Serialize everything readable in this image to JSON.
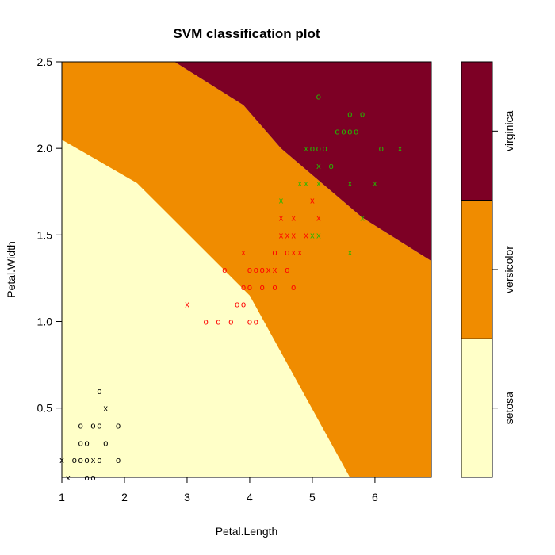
{
  "chart_data": {
    "type": "scatter",
    "title": "SVM classification plot",
    "xlabel": "Petal.Length",
    "ylabel": "Petal.Width",
    "xlim": [
      1,
      6.9
    ],
    "ylim": [
      0.1,
      2.5
    ],
    "x_ticks": [
      1,
      2,
      3,
      4,
      5,
      6
    ],
    "y_ticks": [
      0.5,
      1.0,
      1.5,
      2.0,
      2.5
    ],
    "y_tick_labels": [
      "0.5",
      "1.0",
      "1.5",
      "2.0",
      "2.5"
    ],
    "markers": {
      "data_point": "o",
      "support_vector": "x"
    },
    "classes": [
      {
        "name": "setosa",
        "region_color": "#FFFFC8",
        "point_color": "#000000"
      },
      {
        "name": "versicolor",
        "region_color": "#F08C00",
        "point_color": "#FF0000"
      },
      {
        "name": "virginica",
        "region_color": "#7D0025",
        "point_color": "#22BB00"
      }
    ],
    "decision_boundaries": [
      {
        "between": [
          "setosa",
          "versicolor"
        ],
        "points": [
          [
            1.0,
            2.05
          ],
          [
            2.2,
            1.8
          ],
          [
            4.0,
            1.15
          ],
          [
            5.6,
            0.1
          ]
        ]
      },
      {
        "between": [
          "versicolor",
          "virginica"
        ],
        "points": [
          [
            2.8,
            2.5
          ],
          [
            3.9,
            2.25
          ],
          [
            4.5,
            2.0
          ],
          [
            5.8,
            1.6
          ],
          [
            6.9,
            1.35
          ]
        ]
      }
    ],
    "legend": {
      "placement": "right",
      "labels": [
        "setosa",
        "versicolor",
        "virginica"
      ]
    },
    "series": [
      {
        "name": "setosa",
        "points": [
          [
            1.0,
            0.2,
            "x"
          ],
          [
            1.1,
            0.1,
            "x"
          ],
          [
            1.2,
            0.2,
            "o"
          ],
          [
            1.3,
            0.2,
            "o"
          ],
          [
            1.3,
            0.3,
            "o"
          ],
          [
            1.3,
            0.4,
            "o"
          ],
          [
            1.4,
            0.1,
            "o"
          ],
          [
            1.4,
            0.2,
            "o"
          ],
          [
            1.4,
            0.3,
            "o"
          ],
          [
            1.5,
            0.1,
            "o"
          ],
          [
            1.5,
            0.2,
            "x"
          ],
          [
            1.5,
            0.4,
            "o"
          ],
          [
            1.6,
            0.2,
            "o"
          ],
          [
            1.6,
            0.4,
            "o"
          ],
          [
            1.6,
            0.6,
            "o"
          ],
          [
            1.7,
            0.3,
            "o"
          ],
          [
            1.7,
            0.5,
            "x"
          ],
          [
            1.9,
            0.2,
            "o"
          ],
          [
            1.9,
            0.4,
            "o"
          ]
        ]
      },
      {
        "name": "versicolor",
        "points": [
          [
            3.0,
            1.1,
            "x"
          ],
          [
            3.3,
            1.0,
            "o"
          ],
          [
            3.5,
            1.0,
            "o"
          ],
          [
            3.6,
            1.3,
            "o"
          ],
          [
            3.7,
            1.0,
            "o"
          ],
          [
            3.8,
            1.1,
            "o"
          ],
          [
            3.9,
            1.1,
            "o"
          ],
          [
            3.9,
            1.2,
            "o"
          ],
          [
            3.9,
            1.4,
            "x"
          ],
          [
            4.0,
            1.0,
            "o"
          ],
          [
            4.0,
            1.2,
            "o"
          ],
          [
            4.0,
            1.3,
            "o"
          ],
          [
            4.1,
            1.0,
            "o"
          ],
          [
            4.1,
            1.3,
            "o"
          ],
          [
            4.2,
            1.2,
            "o"
          ],
          [
            4.2,
            1.3,
            "o"
          ],
          [
            4.3,
            1.3,
            "x"
          ],
          [
            4.4,
            1.2,
            "o"
          ],
          [
            4.4,
            1.3,
            "x"
          ],
          [
            4.4,
            1.4,
            "o"
          ],
          [
            4.5,
            1.5,
            "x"
          ],
          [
            4.5,
            1.6,
            "x"
          ],
          [
            4.6,
            1.3,
            "o"
          ],
          [
            4.6,
            1.4,
            "o"
          ],
          [
            4.6,
            1.5,
            "x"
          ],
          [
            4.7,
            1.2,
            "o"
          ],
          [
            4.7,
            1.4,
            "x"
          ],
          [
            4.7,
            1.5,
            "x"
          ],
          [
            4.7,
            1.6,
            "x"
          ],
          [
            4.8,
            1.4,
            "x"
          ],
          [
            4.9,
            1.5,
            "x"
          ],
          [
            5.0,
            1.7,
            "x"
          ],
          [
            5.1,
            1.6,
            "x"
          ]
        ]
      },
      {
        "name": "virginica",
        "points": [
          [
            4.5,
            1.7,
            "x"
          ],
          [
            4.8,
            1.8,
            "x"
          ],
          [
            4.9,
            1.8,
            "x"
          ],
          [
            4.9,
            2.0,
            "x"
          ],
          [
            5.0,
            1.5,
            "x"
          ],
          [
            5.0,
            2.0,
            "o"
          ],
          [
            5.1,
            1.5,
            "x"
          ],
          [
            5.1,
            1.8,
            "x"
          ],
          [
            5.1,
            1.9,
            "x"
          ],
          [
            5.1,
            2.0,
            "o"
          ],
          [
            5.1,
            2.3,
            "o"
          ],
          [
            5.2,
            2.0,
            "o"
          ],
          [
            5.3,
            1.9,
            "o"
          ],
          [
            5.4,
            2.1,
            "o"
          ],
          [
            5.5,
            2.1,
            "o"
          ],
          [
            5.6,
            1.4,
            "x"
          ],
          [
            5.6,
            1.8,
            "x"
          ],
          [
            5.6,
            2.1,
            "o"
          ],
          [
            5.6,
            2.2,
            "o"
          ],
          [
            5.7,
            2.1,
            "o"
          ],
          [
            5.8,
            1.6,
            "x"
          ],
          [
            5.8,
            2.2,
            "o"
          ],
          [
            6.0,
            1.8,
            "x"
          ],
          [
            6.1,
            2.0,
            "o"
          ],
          [
            6.4,
            2.0,
            "x"
          ]
        ]
      }
    ]
  }
}
